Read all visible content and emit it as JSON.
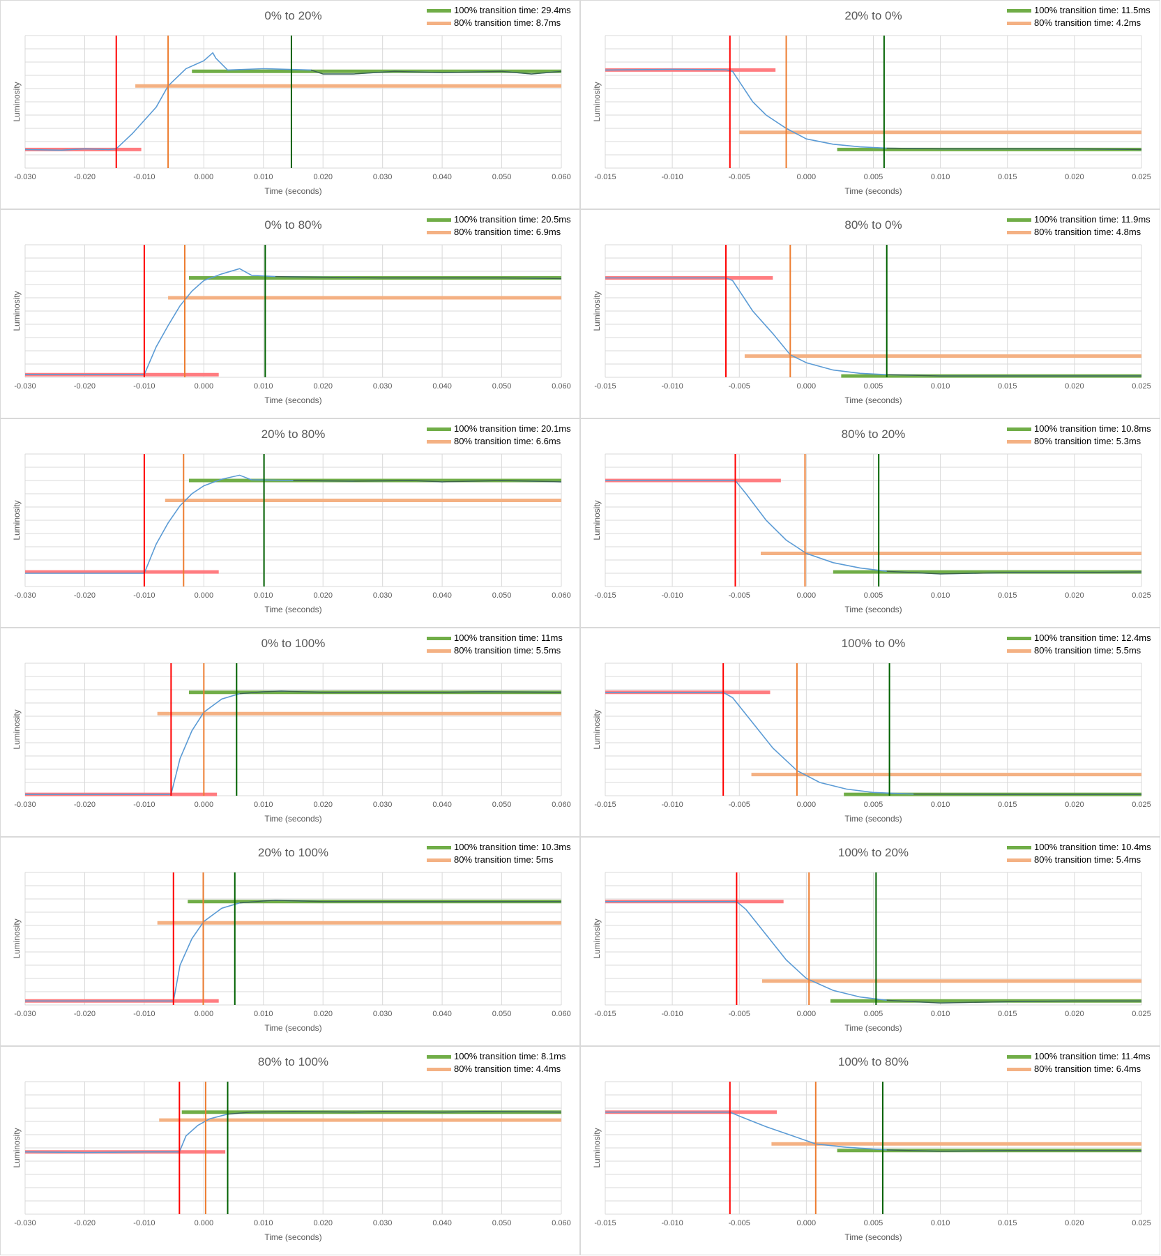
{
  "colors": {
    "grid": "#d9d9d9",
    "luminosity": "#5b9bd5",
    "start_line": "#ff0000",
    "start_level": "#ff7c80",
    "t80_line": "#ed7d31",
    "t80_level": "#f4b183",
    "t100_line": "#006100",
    "t100_level": "#70ad47",
    "settled": "#375623"
  },
  "chart_data": [
    {
      "type": "line",
      "title": "0% to 20%",
      "xlabel": "Time (seconds)",
      "ylabel": "Luminosity",
      "xlim": [
        -0.03,
        0.06
      ],
      "ylim": [
        0,
        10
      ],
      "xticks": [
        "-0.030",
        "-0.020",
        "-0.010",
        "0.000",
        "0.010",
        "0.020",
        "0.030",
        "0.040",
        "0.050",
        "0.060"
      ],
      "legend": [
        "100% transition time: 29.4ms",
        "80% transition time: 8.7ms"
      ],
      "legend_position": "top-right",
      "start": -0.0147,
      "t80": -0.006,
      "t100": 0.0147,
      "v0": 1.4,
      "v1": 7.3,
      "v80": 6.2,
      "red_seg": [
        -0.03,
        -0.0105
      ],
      "orange_seg": [
        -0.0115,
        0.06
      ],
      "green_seg": [
        -0.002,
        0.06
      ],
      "curve": [
        [
          -0.03,
          1.4
        ],
        [
          -0.024,
          1.35
        ],
        [
          -0.02,
          1.45
        ],
        [
          -0.016,
          1.4
        ],
        [
          -0.0147,
          1.45
        ],
        [
          -0.012,
          2.6
        ],
        [
          -0.008,
          4.6
        ],
        [
          -0.006,
          6.2
        ],
        [
          -0.003,
          7.5
        ],
        [
          0.0,
          8.1
        ],
        [
          0.0015,
          8.7
        ],
        [
          0.002,
          8.3
        ],
        [
          0.004,
          7.4
        ],
        [
          0.01,
          7.5
        ],
        [
          0.018,
          7.4
        ],
        [
          0.02,
          7.1
        ],
        [
          0.025,
          7.1
        ],
        [
          0.032,
          7.3
        ],
        [
          0.04,
          7.2
        ],
        [
          0.05,
          7.3
        ],
        [
          0.055,
          7.1
        ],
        [
          0.06,
          7.3
        ]
      ]
    },
    {
      "type": "line",
      "title": "20% to 0%",
      "xlabel": "Time (seconds)",
      "ylabel": "Luminosity",
      "xlim": [
        -0.015,
        0.025
      ],
      "ylim": [
        0,
        10
      ],
      "xticks": [
        "-0.015",
        "-0.010",
        "-0.005",
        "0.000",
        "0.005",
        "0.010",
        "0.015",
        "0.020",
        "0.025"
      ],
      "legend": [
        "100% transition time: 11.5ms",
        "80% transition time: 4.2ms"
      ],
      "legend_position": "top-right",
      "start": -0.0057,
      "t80": -0.0015,
      "t100": 0.0058,
      "v0": 7.4,
      "v1": 1.4,
      "v80": 2.7,
      "red_seg": [
        -0.015,
        -0.0023
      ],
      "orange_seg": [
        -0.005,
        0.025
      ],
      "green_seg": [
        0.0023,
        0.025
      ],
      "curve": [
        [
          -0.015,
          7.4
        ],
        [
          -0.01,
          7.45
        ],
        [
          -0.006,
          7.42
        ],
        [
          -0.0055,
          7.3
        ],
        [
          -0.004,
          5.0
        ],
        [
          -0.003,
          4.0
        ],
        [
          -0.0015,
          3.0
        ],
        [
          0.0,
          2.2
        ],
        [
          0.002,
          1.8
        ],
        [
          0.004,
          1.6
        ],
        [
          0.006,
          1.5
        ],
        [
          0.01,
          1.45
        ],
        [
          0.015,
          1.45
        ],
        [
          0.02,
          1.45
        ],
        [
          0.025,
          1.4
        ]
      ]
    },
    {
      "type": "line",
      "title": "0% to 80%",
      "xlabel": "Time (seconds)",
      "ylabel": "Luminosity",
      "xlim": [
        -0.03,
        0.06
      ],
      "ylim": [
        0,
        10
      ],
      "xticks": [
        "-0.030",
        "-0.020",
        "-0.010",
        "0.000",
        "0.010",
        "0.020",
        "0.030",
        "0.040",
        "0.050",
        "0.060"
      ],
      "legend": [
        "100% transition time: 20.5ms",
        "80% transition time: 6.9ms"
      ],
      "legend_position": "top-right",
      "start": -0.01,
      "t80": -0.0032,
      "t100": 0.0103,
      "v0": 0.2,
      "v1": 7.5,
      "v80": 6.0,
      "red_seg": [
        -0.03,
        0.0025
      ],
      "orange_seg": [
        -0.006,
        0.06
      ],
      "green_seg": [
        -0.0025,
        0.06
      ],
      "curve": [
        [
          -0.03,
          0.2
        ],
        [
          -0.01,
          0.2
        ],
        [
          -0.008,
          2.3
        ],
        [
          -0.006,
          3.9
        ],
        [
          -0.004,
          5.4
        ],
        [
          -0.002,
          6.5
        ],
        [
          0.0,
          7.3
        ],
        [
          0.003,
          7.8
        ],
        [
          0.006,
          8.2
        ],
        [
          0.008,
          7.7
        ],
        [
          0.012,
          7.6
        ],
        [
          0.02,
          7.55
        ],
        [
          0.03,
          7.5
        ],
        [
          0.04,
          7.5
        ],
        [
          0.05,
          7.5
        ],
        [
          0.06,
          7.45
        ]
      ]
    },
    {
      "type": "line",
      "title": "80% to 0%",
      "xlabel": "Time (seconds)",
      "ylabel": "Luminosity",
      "xlim": [
        -0.015,
        0.025
      ],
      "ylim": [
        0,
        10
      ],
      "xticks": [
        "-0.015",
        "-0.010",
        "-0.005",
        "0.000",
        "0.005",
        "0.010",
        "0.015",
        "0.020",
        "0.025"
      ],
      "legend": [
        "100% transition time: 11.9ms",
        "80% transition time: 4.8ms"
      ],
      "legend_position": "top-right",
      "start": -0.006,
      "t80": -0.0012,
      "t100": 0.006,
      "v0": 7.5,
      "v1": 0.1,
      "v80": 1.6,
      "red_seg": [
        -0.015,
        -0.0025
      ],
      "orange_seg": [
        -0.0046,
        0.025
      ],
      "green_seg": [
        0.0026,
        0.025
      ],
      "curve": [
        [
          -0.015,
          7.5
        ],
        [
          -0.006,
          7.5
        ],
        [
          -0.0055,
          7.3
        ],
        [
          -0.004,
          5.0
        ],
        [
          -0.0025,
          3.3
        ],
        [
          -0.0012,
          1.7
        ],
        [
          0.0,
          1.1
        ],
        [
          0.002,
          0.55
        ],
        [
          0.004,
          0.3
        ],
        [
          0.006,
          0.2
        ],
        [
          0.01,
          0.1
        ],
        [
          0.015,
          0.1
        ],
        [
          0.025,
          0.1
        ]
      ]
    },
    {
      "type": "line",
      "title": "20% to 80%",
      "xlabel": "Time (seconds)",
      "ylabel": "Luminosity",
      "xlim": [
        -0.03,
        0.06
      ],
      "ylim": [
        0,
        10
      ],
      "xticks": [
        "-0.030",
        "-0.020",
        "-0.010",
        "0.000",
        "0.010",
        "0.020",
        "0.030",
        "0.040",
        "0.050",
        "0.060"
      ],
      "legend": [
        "100% transition time: 20.1ms",
        "80% transition time: 6.6ms"
      ],
      "legend_position": "top-right",
      "start": -0.01,
      "t80": -0.0034,
      "t100": 0.0101,
      "v0": 1.1,
      "v1": 8.0,
      "v80": 6.5,
      "red_seg": [
        -0.03,
        0.0025
      ],
      "orange_seg": [
        -0.0065,
        0.06
      ],
      "green_seg": [
        -0.0025,
        0.06
      ],
      "curve": [
        [
          -0.03,
          1.0
        ],
        [
          -0.01,
          1.0
        ],
        [
          -0.008,
          3.2
        ],
        [
          -0.006,
          4.8
        ],
        [
          -0.004,
          6.1
        ],
        [
          -0.002,
          7.0
        ],
        [
          0.0,
          7.6
        ],
        [
          0.003,
          8.1
        ],
        [
          0.006,
          8.4
        ],
        [
          0.008,
          8.05
        ],
        [
          0.015,
          8.0
        ],
        [
          0.025,
          7.95
        ],
        [
          0.035,
          8.0
        ],
        [
          0.04,
          7.9
        ],
        [
          0.05,
          8.0
        ],
        [
          0.06,
          7.9
        ]
      ]
    },
    {
      "type": "line",
      "title": "80% to 20%",
      "xlabel": "Time (seconds)",
      "ylabel": "Luminosity",
      "xlim": [
        -0.015,
        0.025
      ],
      "ylim": [
        0,
        10
      ],
      "xticks": [
        "-0.015",
        "-0.010",
        "-0.005",
        "0.000",
        "0.005",
        "0.010",
        "0.015",
        "0.020",
        "0.025"
      ],
      "legend": [
        "100% transition time: 10.8ms",
        "80% transition time: 5.3ms"
      ],
      "legend_position": "top-right",
      "start": -0.0053,
      "t80": -0.0001,
      "t100": 0.0054,
      "v0": 8.0,
      "v1": 1.1,
      "v80": 2.5,
      "red_seg": [
        -0.015,
        -0.0019
      ],
      "orange_seg": [
        -0.0034,
        0.025
      ],
      "green_seg": [
        0.002,
        0.025
      ],
      "curve": [
        [
          -0.015,
          8.0
        ],
        [
          -0.0053,
          8.0
        ],
        [
          -0.0045,
          7.0
        ],
        [
          -0.003,
          5.0
        ],
        [
          -0.0015,
          3.5
        ],
        [
          0.0,
          2.5
        ],
        [
          0.002,
          1.8
        ],
        [
          0.004,
          1.4
        ],
        [
          0.006,
          1.15
        ],
        [
          0.01,
          0.95
        ],
        [
          0.015,
          1.05
        ],
        [
          0.02,
          1.05
        ],
        [
          0.025,
          1.1
        ]
      ]
    },
    {
      "type": "line",
      "title": "0% to 100%",
      "xlabel": "Time (seconds)",
      "ylabel": "Luminosity",
      "xlim": [
        -0.03,
        0.06
      ],
      "ylim": [
        0,
        10
      ],
      "xticks": [
        "-0.030",
        "-0.020",
        "-0.010",
        "0.000",
        "0.010",
        "0.020",
        "0.030",
        "0.040",
        "0.050",
        "0.060"
      ],
      "legend": [
        "100% transition time: 11ms",
        "80% transition time: 5.5ms"
      ],
      "legend_position": "top-right",
      "start": -0.0055,
      "t80": 0.0,
      "t100": 0.0055,
      "v0": 0.1,
      "v1": 7.8,
      "v80": 6.2,
      "red_seg": [
        -0.03,
        0.0022
      ],
      "orange_seg": [
        -0.0078,
        0.06
      ],
      "green_seg": [
        -0.0025,
        0.06
      ],
      "curve": [
        [
          -0.03,
          0.1
        ],
        [
          -0.0055,
          0.1
        ],
        [
          -0.004,
          2.8
        ],
        [
          -0.002,
          4.9
        ],
        [
          0.0,
          6.3
        ],
        [
          0.003,
          7.3
        ],
        [
          0.006,
          7.7
        ],
        [
          0.01,
          7.85
        ],
        [
          0.013,
          7.9
        ],
        [
          0.02,
          7.8
        ],
        [
          0.03,
          7.8
        ],
        [
          0.04,
          7.8
        ],
        [
          0.047,
          7.85
        ],
        [
          0.06,
          7.8
        ]
      ]
    },
    {
      "type": "line",
      "title": "100% to 0%",
      "xlabel": "Time (seconds)",
      "ylabel": "Luminosity",
      "xlim": [
        -0.015,
        0.025
      ],
      "ylim": [
        0,
        10
      ],
      "xticks": [
        "-0.015",
        "-0.010",
        "-0.005",
        "0.000",
        "0.005",
        "0.010",
        "0.015",
        "0.020",
        "0.025"
      ],
      "legend": [
        "100% transition time: 12.4ms",
        "80% transition time: 5.5ms"
      ],
      "legend_position": "top-right",
      "start": -0.0062,
      "t80": -0.0007,
      "t100": 0.0062,
      "v0": 7.8,
      "v1": 0.1,
      "v80": 1.6,
      "red_seg": [
        -0.015,
        -0.0027
      ],
      "orange_seg": [
        -0.0041,
        0.025
      ],
      "green_seg": [
        0.0028,
        0.025
      ],
      "curve": [
        [
          -0.015,
          7.8
        ],
        [
          -0.0062,
          7.8
        ],
        [
          -0.0055,
          7.4
        ],
        [
          -0.004,
          5.5
        ],
        [
          -0.0025,
          3.6
        ],
        [
          -0.0007,
          1.9
        ],
        [
          0.001,
          1.0
        ],
        [
          0.003,
          0.5
        ],
        [
          0.005,
          0.25
        ],
        [
          0.008,
          0.12
        ],
        [
          0.015,
          0.1
        ],
        [
          0.025,
          0.1
        ]
      ]
    },
    {
      "type": "line",
      "title": "20% to 100%",
      "xlabel": "Time (seconds)",
      "ylabel": "Luminosity",
      "xlim": [
        -0.03,
        0.06
      ],
      "ylim": [
        0,
        10
      ],
      "xticks": [
        "-0.030",
        "-0.020",
        "-0.010",
        "0.000",
        "0.010",
        "0.020",
        "0.030",
        "0.040",
        "0.050",
        "0.060"
      ],
      "legend": [
        "100% transition time: 10.3ms",
        "80% transition time: 5ms"
      ],
      "legend_position": "top-right",
      "start": -0.0051,
      "t80": -0.0001,
      "t100": 0.0052,
      "v0": 0.3,
      "v1": 7.8,
      "v80": 6.2,
      "red_seg": [
        -0.03,
        0.0025
      ],
      "orange_seg": [
        -0.0078,
        0.06
      ],
      "green_seg": [
        -0.0027,
        0.06
      ],
      "curve": [
        [
          -0.03,
          0.3
        ],
        [
          -0.0051,
          0.3
        ],
        [
          -0.004,
          3.0
        ],
        [
          -0.002,
          5.0
        ],
        [
          0.0,
          6.3
        ],
        [
          0.003,
          7.3
        ],
        [
          0.006,
          7.7
        ],
        [
          0.01,
          7.85
        ],
        [
          0.012,
          7.9
        ],
        [
          0.02,
          7.8
        ],
        [
          0.03,
          7.8
        ],
        [
          0.04,
          7.8
        ],
        [
          0.06,
          7.8
        ]
      ]
    },
    {
      "type": "line",
      "title": "100% to 20%",
      "xlabel": "Time (seconds)",
      "ylabel": "Luminosity",
      "xlim": [
        -0.015,
        0.025
      ],
      "ylim": [
        0,
        10
      ],
      "xticks": [
        "-0.015",
        "-0.010",
        "-0.005",
        "0.000",
        "0.005",
        "0.010",
        "0.015",
        "0.020",
        "0.025"
      ],
      "legend": [
        "100% transition time: 10.4ms",
        "80% transition time: 5.4ms"
      ],
      "legend_position": "top-right",
      "start": -0.0052,
      "t80": 0.0002,
      "t100": 0.0052,
      "v0": 7.8,
      "v1": 0.3,
      "v80": 1.8,
      "red_seg": [
        -0.015,
        -0.0017
      ],
      "orange_seg": [
        -0.0033,
        0.025
      ],
      "green_seg": [
        0.0018,
        0.025
      ],
      "curve": [
        [
          -0.015,
          7.8
        ],
        [
          -0.0052,
          7.8
        ],
        [
          -0.0045,
          7.2
        ],
        [
          -0.003,
          5.3
        ],
        [
          -0.0015,
          3.4
        ],
        [
          0.0,
          2.0
        ],
        [
          0.002,
          1.1
        ],
        [
          0.004,
          0.6
        ],
        [
          0.006,
          0.35
        ],
        [
          0.01,
          0.15
        ],
        [
          0.015,
          0.25
        ],
        [
          0.02,
          0.3
        ],
        [
          0.025,
          0.3
        ]
      ]
    },
    {
      "type": "line",
      "title": "80% to 100%",
      "xlabel": "Time (seconds)",
      "ylabel": "Luminosity",
      "xlim": [
        -0.03,
        0.06
      ],
      "ylim": [
        0,
        10
      ],
      "xticks": [
        "-0.030",
        "-0.020",
        "-0.010",
        "0.000",
        "0.010",
        "0.020",
        "0.030",
        "0.040",
        "0.050",
        "0.060"
      ],
      "legend": [
        "100% transition time: 8.1ms",
        "80% transition time: 4.4ms"
      ],
      "legend_position": "top-right",
      "start": -0.0041,
      "t80": 0.0003,
      "t100": 0.004,
      "v0": 4.7,
      "v1": 7.7,
      "v80": 7.1,
      "red_seg": [
        -0.03,
        0.0036
      ],
      "orange_seg": [
        -0.0075,
        0.06
      ],
      "green_seg": [
        -0.0037,
        0.06
      ],
      "curve": [
        [
          -0.03,
          4.7
        ],
        [
          -0.02,
          4.65
        ],
        [
          -0.01,
          4.7
        ],
        [
          -0.0041,
          4.7
        ],
        [
          -0.003,
          5.9
        ],
        [
          -0.001,
          6.7
        ],
        [
          0.001,
          7.2
        ],
        [
          0.004,
          7.55
        ],
        [
          0.008,
          7.7
        ],
        [
          0.015,
          7.75
        ],
        [
          0.025,
          7.7
        ],
        [
          0.03,
          7.75
        ],
        [
          0.04,
          7.7
        ],
        [
          0.047,
          7.75
        ],
        [
          0.06,
          7.7
        ]
      ]
    },
    {
      "type": "line",
      "title": "100% to 80%",
      "xlabel": "Time (seconds)",
      "ylabel": "Luminosity",
      "xlim": [
        -0.015,
        0.025
      ],
      "ylim": [
        0,
        10
      ],
      "xticks": [
        "-0.015",
        "-0.010",
        "-0.005",
        "0.000",
        "0.005",
        "0.010",
        "0.015",
        "0.020",
        "0.025"
      ],
      "legend": [
        "100% transition time: 11.4ms",
        "80% transition time: 6.4ms"
      ],
      "legend_position": "top-right",
      "start": -0.0057,
      "t80": 0.0007,
      "t100": 0.0057,
      "v0": 7.7,
      "v1": 4.8,
      "v80": 5.3,
      "red_seg": [
        -0.015,
        -0.0022
      ],
      "orange_seg": [
        -0.0026,
        0.025
      ],
      "green_seg": [
        0.0023,
        0.025
      ],
      "curve": [
        [
          -0.015,
          7.7
        ],
        [
          -0.0057,
          7.7
        ],
        [
          -0.005,
          7.4
        ],
        [
          -0.003,
          6.6
        ],
        [
          -0.001,
          5.9
        ],
        [
          0.0007,
          5.3
        ],
        [
          0.003,
          5.05
        ],
        [
          0.006,
          4.85
        ],
        [
          0.01,
          4.75
        ],
        [
          0.015,
          4.8
        ],
        [
          0.025,
          4.8
        ]
      ]
    }
  ]
}
